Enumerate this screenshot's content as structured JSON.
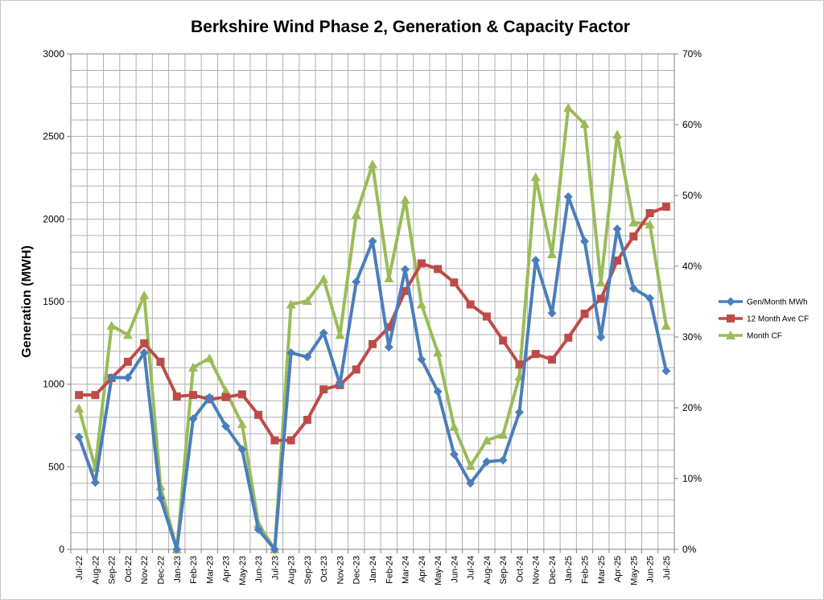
{
  "chart_data": {
    "type": "line",
    "title": "Berkshire Wind Phase 2, Generation & Capacity Factor",
    "ylabel": "Generation (MWH)",
    "ylabel_right": "",
    "categories": [
      "Jul-22",
      "Aug-22",
      "Sep-22",
      "Oct-22",
      "Nov-22",
      "Dec-22",
      "Jan-23",
      "Feb-23",
      "Mar-23",
      "Apr-23",
      "May-23",
      "Jun-23",
      "Jul-23",
      "Aug-23",
      "Sep-23",
      "Oct-23",
      "Nov-23",
      "Dec-23",
      "Jan-24",
      "Feb-24",
      "Mar-24",
      "Apr-24",
      "May-24",
      "Jun-24",
      "Jul-24",
      "Aug-24",
      "Sep-24",
      "Oct-24",
      "Nov-24",
      "Dec-24",
      "Jan-25",
      "Feb-25",
      "Mar-25",
      "Apr-25",
      "May-25",
      "Jun-25",
      "Jul-25"
    ],
    "ylim": [
      0,
      3000
    ],
    "yticks": [
      "0",
      "500",
      "1000",
      "1500",
      "2000",
      "2500",
      "3000"
    ],
    "ylim_right": [
      0,
      70
    ],
    "yticks_right": [
      "0%",
      "10%",
      "20%",
      "30%",
      "40%",
      "50%",
      "60%",
      "70%"
    ],
    "grid": true,
    "legend_position": "right",
    "series": [
      {
        "name": "Gen/Month MWh",
        "axis": "left",
        "color": "#4a7ebb",
        "marker": "diamond",
        "values": [
          680,
          405,
          1040,
          1040,
          1190,
          310,
          0,
          790,
          920,
          745,
          605,
          120,
          0,
          1190,
          1165,
          1310,
          1000,
          1620,
          1865,
          1225,
          1695,
          1150,
          955,
          575,
          400,
          530,
          540,
          830,
          1750,
          1430,
          2135,
          1865,
          1285,
          1940,
          1580,
          1520,
          1080
        ]
      },
      {
        "name": "12 Month Ave CF",
        "axis": "right",
        "color": "#be4b48",
        "marker": "square",
        "values": [
          21.8,
          21.8,
          24.2,
          26.5,
          29.1,
          26.5,
          21.6,
          21.8,
          21.2,
          21.5,
          21.9,
          19.0,
          15.4,
          15.4,
          18.3,
          22.6,
          23.2,
          25.4,
          29.0,
          31.4,
          36.5,
          40.4,
          39.6,
          37.7,
          34.6,
          32.9,
          29.5,
          26.1,
          27.6,
          26.8,
          29.9,
          33.3,
          35.4,
          40.8,
          44.2,
          47.5,
          48.4
        ]
      },
      {
        "name": "Month CF",
        "axis": "right",
        "color": "#9bbb59",
        "marker": "triangle",
        "values": [
          19.9,
          11.5,
          31.6,
          30.3,
          35.9,
          8.9,
          0,
          25.7,
          27.0,
          22.4,
          17.7,
          3.6,
          0,
          34.6,
          35.1,
          38.2,
          30.3,
          47.3,
          54.4,
          38.3,
          49.4,
          34.6,
          27.8,
          17.3,
          11.8,
          15.4,
          16.2,
          24.4,
          52.6,
          41.7,
          62.4,
          60.1,
          37.7,
          58.6,
          46.2,
          45.9,
          31.6
        ]
      }
    ]
  }
}
